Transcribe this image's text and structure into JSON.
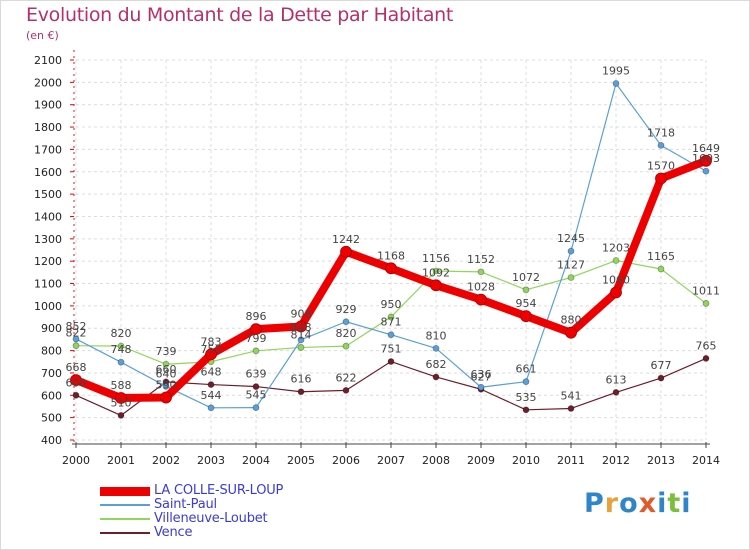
{
  "title": "Evolution du Montant de la Dette par Habitant",
  "unit_label": "(en €)",
  "logo": {
    "text": "Proxiti",
    "letters": [
      {
        "ch": "P",
        "color": "#2e86c9"
      },
      {
        "ch": "r",
        "color": "#e8a23a"
      },
      {
        "ch": "o",
        "color": "#2e86c9"
      },
      {
        "ch": "x",
        "color": "#e05a2a"
      },
      {
        "ch": "i",
        "color": "#2e86c9"
      },
      {
        "ch": "t",
        "color": "#7bbf3a"
      },
      {
        "ch": "i",
        "color": "#2e86c9"
      }
    ]
  },
  "chart_data": {
    "type": "line",
    "title": "Evolution du Montant de la Dette par Habitant",
    "ylabel": "(en €)",
    "xlabel": "",
    "x": [
      "2000",
      "2001",
      "2002",
      "2003",
      "2004",
      "2005",
      "2006",
      "2007",
      "2008",
      "2009",
      "2010",
      "2011",
      "2012",
      "2013",
      "2014"
    ],
    "ylim": [
      400,
      2100
    ],
    "yticks": [
      400,
      500,
      600,
      700,
      800,
      900,
      1000,
      1100,
      1200,
      1300,
      1400,
      1500,
      1600,
      1700,
      1800,
      1900,
      2000,
      2100
    ],
    "grid": true,
    "legend_position": "bottom-left",
    "series": [
      {
        "name": "Vence",
        "color": "#6e1e2a",
        "values": [
          600,
          510,
          660,
          648,
          639,
          616,
          622,
          751,
          682,
          627,
          535,
          541,
          613,
          677,
          765
        ]
      },
      {
        "name": "Villeneuve-Loubet",
        "color": "#8fd65a",
        "values": [
          822,
          820,
          739,
          750,
          799,
          814,
          820,
          950,
          1156,
          1152,
          1072,
          1127,
          1203,
          1165,
          1011
        ]
      },
      {
        "name": "Saint-Paul",
        "color": "#5aa0d8",
        "values": [
          852,
          748,
          640,
          544,
          545,
          848,
          929,
          871,
          810,
          636,
          661,
          1245,
          1995,
          1718,
          1603
        ]
      },
      {
        "name": "LA COLLE-SUR-LOUP",
        "color": "#ee0000",
        "values": [
          668,
          588,
          590,
          783,
          896,
          908,
          1242,
          1168,
          1092,
          1028,
          954,
          880,
          1060,
          1570,
          1649
        ]
      }
    ],
    "labels": [
      {
        "series": "LA COLLE-SUR-LOUP",
        "texts": [
          "668",
          "588",
          "590",
          "783",
          "896",
          "908",
          "1242",
          "1168",
          "1092",
          "1028",
          "954",
          "880",
          "1060",
          "1570",
          "1649"
        ]
      },
      {
        "series": "Saint-Paul",
        "texts": [
          "852",
          "748",
          "640",
          "544",
          "545",
          "848",
          "929",
          "871",
          "810",
          "636",
          "661",
          "1245",
          "1995",
          "1718",
          "1603"
        ]
      },
      {
        "series": "Villeneuve-Loubet",
        "texts": [
          "822",
          "820",
          "739",
          "750",
          "799",
          "814",
          "820",
          "950",
          "1156",
          "1152",
          "1072",
          "1127",
          "1203",
          "1165",
          "1011"
        ]
      },
      {
        "series": "Vence",
        "texts": [
          "600",
          "510",
          "660",
          "648",
          "639",
          "616",
          "622",
          "751",
          "682",
          "627",
          "535",
          "541",
          "613",
          "677",
          "765"
        ]
      }
    ]
  }
}
